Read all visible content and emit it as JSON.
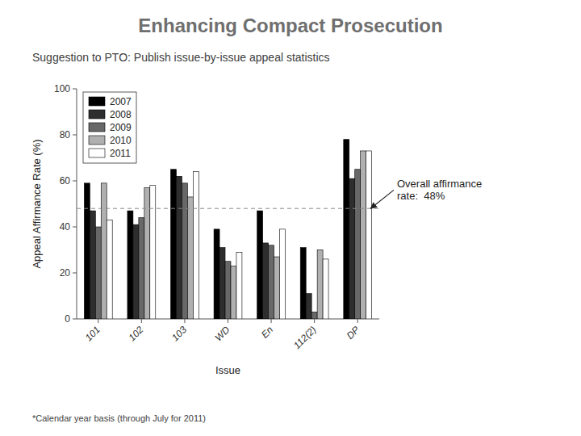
{
  "chart_data": {
    "type": "bar",
    "title": "Enhancing Compact Prosecution",
    "subtitle": "Suggestion to PTO: Publish issue-by-issue appeal statistics",
    "note": "*Calendar year basis (through July for 2011)",
    "xlabel": "Issue",
    "ylabel": "Appeal Affirmance Rate (%)",
    "categories": [
      "101",
      "102",
      "103",
      "WD",
      "En",
      "112(2)",
      "DP"
    ],
    "series": [
      {
        "name": "2007",
        "color": "#000000",
        "values": [
          59,
          47,
          65,
          39,
          47,
          31,
          78
        ]
      },
      {
        "name": "2008",
        "color": "#2e2e2e",
        "values": [
          47,
          41,
          62,
          31,
          33,
          11,
          61
        ]
      },
      {
        "name": "2009",
        "color": "#686868",
        "values": [
          40,
          44,
          59,
          25,
          32,
          3,
          65
        ]
      },
      {
        "name": "2010",
        "color": "#b0b0b0",
        "values": [
          59,
          57,
          53,
          23,
          27,
          30,
          73
        ]
      },
      {
        "name": "2011",
        "color": "#ffffff",
        "values": [
          43,
          58,
          64,
          29,
          39,
          26,
          73
        ]
      }
    ],
    "ylim": [
      0,
      100
    ],
    "yticks": [
      0,
      20,
      40,
      60,
      80,
      100
    ],
    "grid": false,
    "legend": "upper left",
    "reference_line": 48,
    "annotation": "Overall affirmance\nrate:  48%"
  }
}
